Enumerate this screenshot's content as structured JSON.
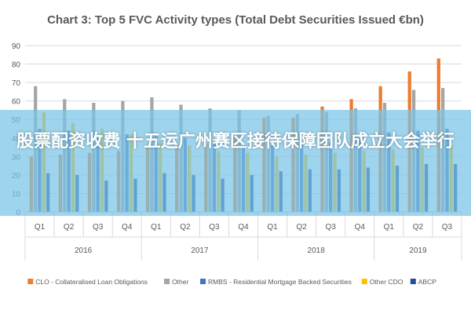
{
  "chart_data": {
    "type": "bar",
    "title": "Chart 3: Top 5 FVC Activity types (Total Debt Securities Issued €bn)",
    "xlabel": "",
    "ylabel": "",
    "ylim": [
      0,
      90
    ],
    "yticks": [
      0,
      10,
      20,
      30,
      40,
      50,
      60,
      70,
      80,
      90
    ],
    "grid": true,
    "legend_position": "bottom",
    "categories": [
      "Q1",
      "Q2",
      "Q3",
      "Q4",
      "Q1",
      "Q2",
      "Q3",
      "Q4",
      "Q1",
      "Q2",
      "Q3",
      "Q4",
      "Q1",
      "Q2",
      "Q3"
    ],
    "groups": [
      {
        "label": "2016",
        "span": 4
      },
      {
        "label": "2017",
        "span": 4
      },
      {
        "label": "2018",
        "span": 4
      },
      {
        "label": "2019",
        "span": 3
      }
    ],
    "series": [
      {
        "name": "CLO - Collateralised Loan Obligations",
        "color": "#ED7D31",
        "values": [
          30,
          31,
          32,
          33,
          35,
          36,
          37,
          41,
          51,
          51,
          57,
          61,
          68,
          76,
          83
        ]
      },
      {
        "name": "Other",
        "color": "#A5A5A5",
        "values": [
          68,
          61,
          59,
          60,
          62,
          58,
          56,
          55,
          52,
          53,
          54,
          56,
          59,
          66,
          67
        ]
      },
      {
        "name": "RMBS - Residential Mortgage Backed Securities",
        "color": "#4472C4",
        "values": [
          45,
          44,
          40,
          42,
          41,
          40,
          37,
          36,
          36,
          37,
          38,
          40,
          43,
          44,
          45
        ]
      },
      {
        "name": "Other CDO",
        "color": "#FFC000",
        "values": [
          54,
          48,
          45,
          42,
          38,
          36,
          33,
          32,
          30,
          31,
          32,
          33,
          34,
          35,
          36
        ]
      },
      {
        "name": "ABCP",
        "color": "#1F4E9A",
        "values": [
          21,
          20,
          17,
          18,
          21,
          20,
          18,
          20,
          22,
          23,
          23,
          24,
          25,
          26,
          26
        ]
      }
    ]
  },
  "banner": {
    "text": "股票配资收费 十五运广州赛区接待保障团队成立大会举行",
    "color": "#78C3E6"
  }
}
